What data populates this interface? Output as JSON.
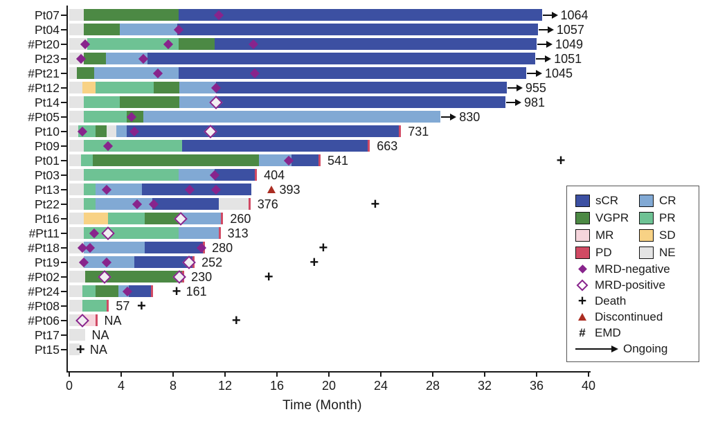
{
  "axis": {
    "xlabel": "Time (Month)",
    "xlim": [
      0,
      40
    ],
    "ticks": [
      0,
      4,
      8,
      12,
      16,
      20,
      24,
      28,
      32,
      36,
      40
    ]
  },
  "colors": {
    "sCR": "#3c50a2",
    "CR": "#81a9d4",
    "VGPR": "#4c8944",
    "PR": "#6ec294",
    "MR": "#f6d5dc",
    "SD": "#f8d285",
    "PD": "#d6germ4a64",
    "PD_fix": "#d14a64",
    "NE": "#e4e4e4",
    "mrd_purple": "#88248c",
    "discontinued_red": "#ab2d22",
    "axis_black": "#1a1a1a"
  },
  "legend": {
    "responses": [
      {
        "key": "sCR",
        "label": "sCR",
        "color": "#3c50a2"
      },
      {
        "key": "CR",
        "label": "CR",
        "color": "#81a9d4"
      },
      {
        "key": "VGPR",
        "label": "VGPR",
        "color": "#4c8944"
      },
      {
        "key": "PR",
        "label": "PR",
        "color": "#6ec294"
      },
      {
        "key": "MR",
        "label": "MR",
        "color": "#f6d5dc"
      },
      {
        "key": "SD",
        "label": "SD",
        "color": "#f8d285"
      },
      {
        "key": "PD",
        "label": "PD",
        "color": "#d14a64"
      },
      {
        "key": "NE",
        "label": "NE",
        "color": "#e4e4e4"
      }
    ],
    "markers": [
      {
        "key": "mrd_negative",
        "symbol": "filled-diamond",
        "label": "MRD-negative"
      },
      {
        "key": "mrd_positive",
        "symbol": "open-diamond",
        "label": "MRD-positive"
      },
      {
        "key": "death",
        "symbol": "plus",
        "label": "Death"
      },
      {
        "key": "discontinued",
        "symbol": "triangle",
        "label": "Discontinued"
      },
      {
        "key": "emd",
        "symbol": "#",
        "label": "EMD"
      },
      {
        "key": "ongoing",
        "symbol": "arrow",
        "label": "Ongoing"
      }
    ]
  },
  "chart_data": {
    "type": "bar",
    "subtype": "swimmer-plot",
    "xlabel": "Time (Month)",
    "xlim": [
      0,
      40
    ],
    "x_unit": "months",
    "value_unit": "days (duration label at bar end; NA = not available)",
    "patients": [
      {
        "label": "Pt07",
        "emd": false,
        "value": "1064",
        "ongoing": true,
        "pd_tip": false,
        "segments": [
          [
            "NE",
            0,
            1.1
          ],
          [
            "VGPR",
            1.1,
            8.4
          ],
          [
            "sCR",
            8.4,
            36.4
          ]
        ],
        "mrd_negative": [
          11.5
        ],
        "mrd_positive": [],
        "death": null,
        "discontinued": null
      },
      {
        "label": "Pt04",
        "emd": false,
        "value": "1057",
        "ongoing": true,
        "pd_tip": false,
        "segments": [
          [
            "NE",
            0,
            1.1
          ],
          [
            "VGPR",
            1.1,
            3.9
          ],
          [
            "CR",
            3.9,
            8.3
          ],
          [
            "sCR",
            8.3,
            36.1
          ]
        ],
        "mrd_negative": [
          8.4
        ],
        "mrd_positive": [],
        "death": null,
        "discontinued": null
      },
      {
        "label": "#Pt20",
        "emd": true,
        "value": "1049",
        "ongoing": true,
        "pd_tip": false,
        "segments": [
          [
            "NE",
            0,
            1.4
          ],
          [
            "PR",
            1.4,
            8.4
          ],
          [
            "VGPR",
            8.4,
            11.2
          ],
          [
            "sCR",
            11.2,
            36.0
          ]
        ],
        "mrd_negative": [
          1.2,
          7.6,
          14.2
        ],
        "mrd_positive": [],
        "death": null,
        "discontinued": null
      },
      {
        "label": "Pt23",
        "emd": false,
        "value": "1051",
        "ongoing": true,
        "pd_tip": false,
        "segments": [
          [
            "NE",
            0,
            1.1
          ],
          [
            "VGPR",
            1.1,
            2.8
          ],
          [
            "CR",
            2.8,
            6.0
          ],
          [
            "sCR",
            6.0,
            35.9
          ]
        ],
        "mrd_negative": [
          0.9,
          5.7
        ],
        "mrd_positive": [],
        "death": null,
        "discontinued": null
      },
      {
        "label": "#Pt21",
        "emd": true,
        "value": "1045",
        "ongoing": true,
        "pd_tip": false,
        "segments": [
          [
            "NE",
            0,
            0.6
          ],
          [
            "VGPR",
            0.6,
            1.9
          ],
          [
            "CR",
            1.9,
            8.4
          ],
          [
            "sCR",
            8.4,
            35.2
          ]
        ],
        "mrd_negative": [
          6.8,
          14.3
        ],
        "mrd_positive": [],
        "death": null,
        "discontinued": null
      },
      {
        "label": "#Pt12",
        "emd": true,
        "value": "955",
        "ongoing": true,
        "pd_tip": false,
        "segments": [
          [
            "NE",
            0,
            1.0
          ],
          [
            "SD",
            1.0,
            2.0
          ],
          [
            "PR",
            2.0,
            6.5
          ],
          [
            "VGPR",
            6.5,
            8.5
          ],
          [
            "CR",
            8.5,
            11.3
          ],
          [
            "sCR",
            11.3,
            33.7
          ]
        ],
        "mrd_negative": [
          11.3
        ],
        "mrd_positive": [],
        "death": null,
        "discontinued": null
      },
      {
        "label": "Pt14",
        "emd": false,
        "value": "981",
        "ongoing": true,
        "pd_tip": false,
        "segments": [
          [
            "NE",
            0,
            1.1
          ],
          [
            "PR",
            1.1,
            3.9
          ],
          [
            "VGPR",
            3.9,
            8.5
          ],
          [
            "CR",
            8.5,
            11.3
          ],
          [
            "sCR",
            11.3,
            33.6
          ]
        ],
        "mrd_negative": [],
        "mrd_positive": [
          11.3
        ],
        "death": null,
        "discontinued": null
      },
      {
        "label": "#Pt05",
        "emd": true,
        "value": "830",
        "ongoing": true,
        "pd_tip": false,
        "segments": [
          [
            "NE",
            0,
            1.1
          ],
          [
            "PR",
            1.1,
            4.4
          ],
          [
            "VGPR",
            4.4,
            5.7
          ],
          [
            "CR",
            5.7,
            28.6
          ]
        ],
        "mrd_negative": [
          4.8
        ],
        "mrd_positive": [],
        "death": null,
        "discontinued": null
      },
      {
        "label": "Pt10",
        "emd": false,
        "value": "731",
        "ongoing": false,
        "pd_tip": true,
        "segments": [
          [
            "NE",
            0,
            0.7
          ],
          [
            "PR",
            0.7,
            2.0
          ],
          [
            "VGPR",
            2.0,
            2.9
          ],
          [
            "NE",
            2.9,
            3.6
          ],
          [
            "CR",
            3.6,
            4.4
          ],
          [
            "sCR",
            4.4,
            25.4
          ]
        ],
        "mrd_negative": [
          1.0,
          5.0
        ],
        "mrd_positive": [
          10.9
        ],
        "death": null,
        "discontinued": null
      },
      {
        "label": "Pt09",
        "emd": false,
        "value": "663",
        "ongoing": false,
        "pd_tip": true,
        "segments": [
          [
            "NE",
            0,
            1.1
          ],
          [
            "PR",
            1.1,
            8.7
          ],
          [
            "sCR",
            8.7,
            23.0
          ]
        ],
        "mrd_negative": [
          3.0
        ],
        "mrd_positive": [],
        "death": null,
        "discontinued": null
      },
      {
        "label": "Pt01",
        "emd": false,
        "value": "541",
        "ongoing": false,
        "pd_tip": true,
        "segments": [
          [
            "NE",
            0,
            0.9
          ],
          [
            "PR",
            0.9,
            1.8
          ],
          [
            "VGPR",
            1.8,
            14.6
          ],
          [
            "CR",
            14.6,
            17.1
          ],
          [
            "sCR",
            17.1,
            19.2
          ]
        ],
        "mrd_negative": [
          16.9
        ],
        "mrd_positive": [],
        "death": 37.9,
        "discontinued": null
      },
      {
        "label": "Pt03",
        "emd": false,
        "value": "404",
        "ongoing": false,
        "pd_tip": true,
        "segments": [
          [
            "NE",
            0,
            1.1
          ],
          [
            "PR",
            1.1,
            8.4
          ],
          [
            "CR",
            8.4,
            11.2
          ],
          [
            "sCR",
            11.2,
            14.3
          ]
        ],
        "mrd_negative": [
          11.2
        ],
        "mrd_positive": [],
        "death": null,
        "discontinued": null
      },
      {
        "label": "Pt13",
        "emd": false,
        "value": "393",
        "ongoing": false,
        "pd_tip": false,
        "segments": [
          [
            "NE",
            0,
            1.1
          ],
          [
            "PR",
            1.1,
            2.0
          ],
          [
            "CR",
            2.0,
            5.6
          ],
          [
            "sCR",
            5.6,
            14.0
          ]
        ],
        "mrd_negative": [
          2.9,
          9.3,
          11.3
        ],
        "mrd_positive": [],
        "death": null,
        "discontinued": 15.6
      },
      {
        "label": "Pt22",
        "emd": false,
        "value": "376",
        "ongoing": false,
        "pd_tip": true,
        "segments": [
          [
            "NE",
            0,
            1.1
          ],
          [
            "PR",
            1.1,
            2.0
          ],
          [
            "CR",
            2.0,
            6.4
          ],
          [
            "sCR",
            6.4,
            11.5
          ],
          [
            "NE",
            11.5,
            13.8
          ]
        ],
        "mrd_negative": [
          5.2,
          6.5
        ],
        "mrd_positive": [],
        "death": 23.6,
        "discontinued": null
      },
      {
        "label": "Pt16",
        "emd": false,
        "value": "260",
        "ongoing": false,
        "pd_tip": true,
        "segments": [
          [
            "NE",
            0,
            1.1
          ],
          [
            "SD",
            1.1,
            3.0
          ],
          [
            "PR",
            3.0,
            5.8
          ],
          [
            "VGPR",
            5.8,
            8.7
          ],
          [
            "CR",
            8.7,
            11.7
          ]
        ],
        "mrd_negative": [],
        "mrd_positive": [
          8.6
        ],
        "death": null,
        "discontinued": null
      },
      {
        "label": "#Pt11",
        "emd": true,
        "value": "313",
        "ongoing": false,
        "pd_tip": true,
        "segments": [
          [
            "NE",
            0,
            1.1
          ],
          [
            "PR",
            1.1,
            8.4
          ],
          [
            "CR",
            8.4,
            11.5
          ]
        ],
        "mrd_negative": [
          1.9
        ],
        "mrd_positive": [
          3.0
        ],
        "death": null,
        "discontinued": null
      },
      {
        "label": "#Pt18",
        "emd": true,
        "value": "280",
        "ongoing": false,
        "pd_tip": true,
        "segments": [
          [
            "NE",
            0,
            1.1
          ],
          [
            "CR",
            1.1,
            5.8
          ],
          [
            "sCR",
            5.8,
            10.3
          ]
        ],
        "mrd_negative": [
          1.0,
          1.6,
          10.2
        ],
        "mrd_positive": [],
        "death": 19.6,
        "discontinued": null
      },
      {
        "label": "Pt19",
        "emd": false,
        "value": "252",
        "ongoing": false,
        "pd_tip": true,
        "segments": [
          [
            "NE",
            0,
            1.1
          ],
          [
            "CR",
            1.1,
            5.0
          ],
          [
            "sCR",
            5.0,
            9.5
          ]
        ],
        "mrd_negative": [
          1.1,
          2.9
        ],
        "mrd_positive": [
          9.2
        ],
        "death": 18.9,
        "discontinued": null
      },
      {
        "label": "#Pt02",
        "emd": true,
        "value": "230",
        "ongoing": false,
        "pd_tip": true,
        "segments": [
          [
            "NE",
            0,
            1.2
          ],
          [
            "VGPR",
            1.2,
            8.7
          ]
        ],
        "mrd_negative": [],
        "mrd_positive": [
          2.7,
          8.5
        ],
        "death": 15.4,
        "discontinued": null
      },
      {
        "label": "#Pt24",
        "emd": true,
        "value": "161",
        "ongoing": false,
        "pd_tip": true,
        "segments": [
          [
            "NE",
            0,
            1.0
          ],
          [
            "PR",
            1.0,
            2.0
          ],
          [
            "VGPR",
            2.0,
            3.8
          ],
          [
            "CR",
            3.8,
            4.6
          ],
          [
            "sCR",
            4.6,
            6.3
          ]
        ],
        "mrd_negative": [
          4.5
        ],
        "mrd_positive": [],
        "death": 8.3,
        "discontinued": null
      },
      {
        "label": "#Pt08",
        "emd": true,
        "value": "57",
        "ongoing": false,
        "pd_tip": true,
        "segments": [
          [
            "NE",
            0,
            1.0
          ],
          [
            "PR",
            1.0,
            2.9
          ]
        ],
        "mrd_negative": [],
        "mrd_positive": [],
        "death": 5.6,
        "discontinued": null
      },
      {
        "label": "#Pt06",
        "emd": true,
        "value": "NA",
        "ongoing": false,
        "pd_tip": true,
        "segments": [
          [
            "NE",
            0,
            0.7
          ],
          [
            "MR",
            0.7,
            2.0
          ]
        ],
        "mrd_negative": [],
        "mrd_positive": [
          1.0
        ],
        "death": 12.9,
        "discontinued": null
      },
      {
        "label": "Pt17",
        "emd": false,
        "value": "NA",
        "ongoing": false,
        "pd_tip": false,
        "segments": [
          [
            "NE",
            0,
            1.2
          ]
        ],
        "mrd_negative": [],
        "mrd_positive": [],
        "death": null,
        "discontinued": null
      },
      {
        "label": "Pt15",
        "emd": false,
        "value": "NA",
        "ongoing": false,
        "pd_tip": false,
        "segments": [
          [
            "NE",
            0,
            0.8
          ]
        ],
        "mrd_negative": [],
        "mrd_positive": [],
        "death": 0.9,
        "discontinued": null
      }
    ]
  }
}
